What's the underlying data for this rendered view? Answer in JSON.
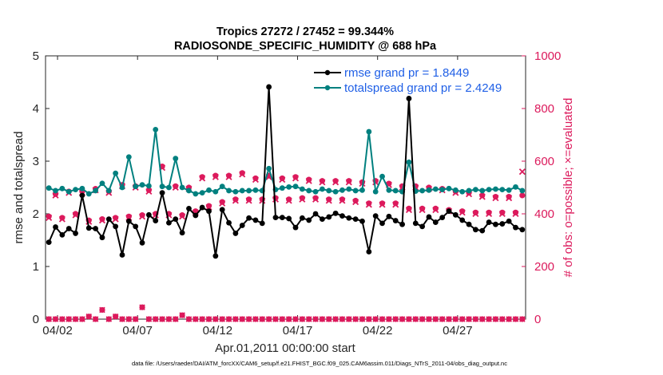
{
  "chart_data": {
    "type": "line",
    "title": "Tropics 27272 / 27452 = 99.344%",
    "subtitle": "RADIOSONDE_SPECIFIC_HUMIDITY @ 688 hPa",
    "xlabel": "Apr.01,2011 00:00:00 start",
    "ylabel_left": "rmse and totalspread",
    "ylabel_right": "# of obs: o=possible; ×=evaluated",
    "ylim_left": [
      0,
      5
    ],
    "ylim_right": [
      0,
      1000
    ],
    "xlim_days": [
      0.5,
      30.5
    ],
    "yticks_left": [
      "0",
      "1",
      "2",
      "3",
      "4",
      "5"
    ],
    "yticks_right": [
      "0",
      "200",
      "400",
      "600",
      "800",
      "1000"
    ],
    "xticks": [
      {
        "day": 1.25,
        "label": "04/02"
      },
      {
        "day": 6.25,
        "label": "04/07"
      },
      {
        "day": 11.25,
        "label": "04/12"
      },
      {
        "day": 16.25,
        "label": "04/17"
      },
      {
        "day": 21.25,
        "label": "04/22"
      },
      {
        "day": 26.25,
        "label": "04/27"
      }
    ],
    "colors": {
      "rmse": "#000000",
      "spread": "#00807f",
      "obs": "#dc1a5c",
      "legend_text": "#1f5fe6"
    },
    "series": [
      {
        "name": "rmse grand pr = 1.8449",
        "axis": "left",
        "values": [
          1.46,
          1.75,
          1.6,
          1.72,
          1.63,
          2.35,
          1.73,
          1.72,
          1.55,
          1.9,
          1.76,
          1.22,
          1.86,
          1.76,
          1.45,
          1.98,
          1.87,
          2.4,
          1.83,
          1.9,
          1.64,
          2.1,
          1.97,
          2.12,
          2.05,
          1.2,
          2.08,
          1.83,
          1.63,
          1.78,
          1.92,
          1.88,
          1.82,
          4.41,
          1.93,
          1.93,
          1.91,
          1.74,
          1.92,
          1.88,
          2.0,
          1.9,
          1.94,
          2.01,
          1.96,
          1.92,
          1.9,
          1.86,
          1.28,
          1.96,
          1.82,
          1.95,
          1.87,
          1.8,
          4.19,
          1.82,
          1.76,
          1.94,
          1.84,
          1.93,
          2.05,
          1.98,
          1.88,
          1.8,
          1.7,
          1.68,
          1.84,
          1.8,
          1.81,
          1.86,
          1.74,
          1.7
        ]
      },
      {
        "name": "totalspread grand pr = 2.4249",
        "axis": "left",
        "values": [
          2.49,
          2.44,
          2.48,
          2.42,
          2.46,
          2.48,
          2.38,
          2.44,
          2.58,
          2.44,
          2.77,
          2.5,
          3.08,
          2.52,
          2.55,
          2.53,
          3.6,
          2.52,
          2.5,
          3.05,
          2.5,
          2.44,
          2.38,
          2.4,
          2.45,
          2.42,
          2.52,
          2.44,
          2.42,
          2.44,
          2.44,
          2.45,
          2.44,
          2.86,
          2.46,
          2.49,
          2.51,
          2.52,
          2.47,
          2.44,
          2.42,
          2.47,
          2.44,
          2.42,
          2.45,
          2.47,
          2.44,
          2.45,
          3.56,
          2.42,
          2.71,
          2.45,
          2.44,
          2.42,
          2.98,
          2.43,
          2.44,
          2.45,
          2.47,
          2.46,
          2.48,
          2.45,
          2.42,
          2.44,
          2.46,
          2.44,
          2.46,
          2.47,
          2.46,
          2.45,
          2.51,
          2.44
        ]
      },
      {
        "name": "# of obs possible",
        "axis": "right",
        "values": [
          390,
          475,
          385,
          485,
          400,
          485,
          375,
          495,
          380,
          485,
          385,
          510,
          390,
          505,
          395,
          490,
          400,
          580,
          400,
          505,
          395,
          500,
          410,
          540,
          430,
          545,
          445,
          545,
          455,
          555,
          455,
          535,
          455,
          545,
          460,
          535,
          455,
          540,
          460,
          530,
          460,
          525,
          455,
          525,
          455,
          525,
          450,
          520,
          440,
          525,
          440,
          515,
          440,
          505,
          420,
          505,
          420,
          500,
          420,
          495,
          415,
          485,
          410,
          480,
          405,
          470,
          405,
          465,
          405,
          465,
          405,
          470
        ]
      },
      {
        "name": "# of obs evaluated",
        "axis": "right",
        "values": [
          385,
          470,
          380,
          480,
          395,
          480,
          370,
          490,
          375,
          480,
          380,
          505,
          385,
          500,
          390,
          485,
          395,
          575,
          395,
          500,
          390,
          495,
          405,
          535,
          425,
          540,
          440,
          540,
          450,
          550,
          450,
          530,
          450,
          540,
          455,
          530,
          450,
          535,
          455,
          525,
          455,
          520,
          450,
          520,
          450,
          520,
          445,
          515,
          435,
          520,
          435,
          510,
          435,
          500,
          415,
          500,
          415,
          495,
          415,
          490,
          410,
          480,
          405,
          475,
          400,
          465,
          400,
          460,
          400,
          460,
          400,
          560
        ]
      },
      {
        "name": "# of obs possible (bottom)",
        "axis": "right",
        "values": [
          0,
          0,
          0,
          0,
          0,
          0,
          10,
          0,
          35,
          0,
          10,
          0,
          0,
          0,
          45,
          0,
          0,
          0,
          0,
          0,
          15,
          0,
          0,
          0,
          0,
          0,
          0,
          0,
          0,
          0,
          0,
          0,
          0,
          0,
          0,
          0,
          0,
          0,
          0,
          0,
          0,
          0,
          0,
          0,
          0,
          0,
          0,
          0,
          0,
          0,
          0,
          0,
          0,
          0,
          0,
          0,
          0,
          0,
          0,
          0,
          0,
          0,
          0,
          0,
          0,
          0,
          0,
          0,
          0,
          0,
          0,
          0
        ]
      }
    ],
    "legend": [
      "rmse grand pr = 1.8449",
      "totalspread grand pr = 2.4249"
    ],
    "footnote": "data file: /Users/raeder/DAI/ATM_forcXX/CAM6_setup/f.e21.FHIST_BGC.f09_025.CAM6assim.011/Diags_NTrS_2011-04/obs_diag_output.nc"
  }
}
